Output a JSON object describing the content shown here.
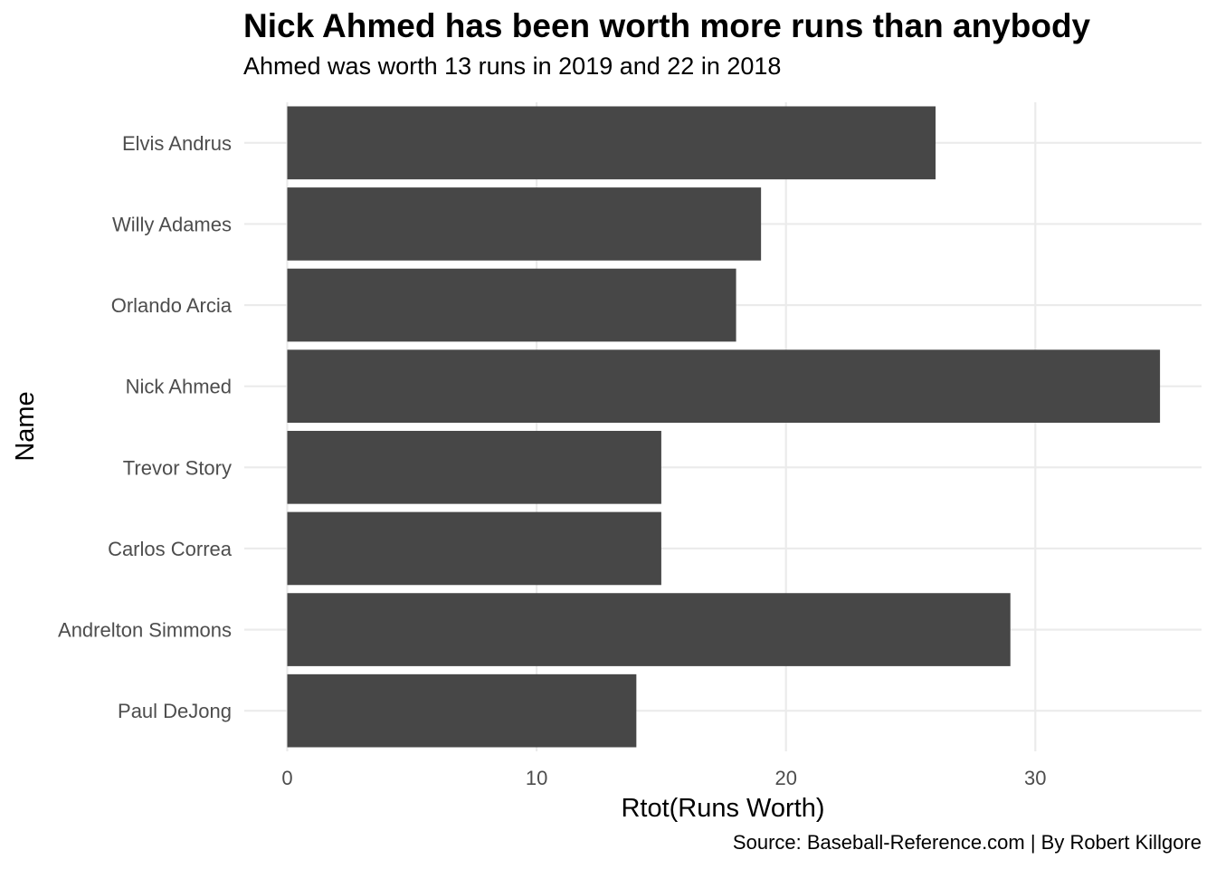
{
  "chart_data": {
    "type": "bar",
    "orientation": "horizontal",
    "title": "Nick Ahmed has been worth more runs than anybody",
    "subtitle": "Ahmed was worth 13 runs in 2019 and 22 in 2018",
    "xlabel": "Rtot(Runs Worth)",
    "ylabel": "Name",
    "caption": "Source: Baseball-Reference.com | By Robert Killgore",
    "categories": [
      "Elvis Andrus",
      "Willy Adames",
      "Orlando Arcia",
      "Nick Ahmed",
      "Trevor Story",
      "Carlos Correa",
      "Andrelton Simmons",
      "Paul DeJong"
    ],
    "values": [
      26,
      19,
      18,
      35,
      15,
      15,
      29,
      14
    ],
    "xlim": [
      0,
      36.75
    ],
    "xticks": [
      0,
      10,
      20,
      30
    ],
    "grid": true,
    "colors": {
      "bar": "#474747",
      "grid": "#ebebeb",
      "tick_text": "#4d4d4d",
      "text": "#000000"
    }
  }
}
